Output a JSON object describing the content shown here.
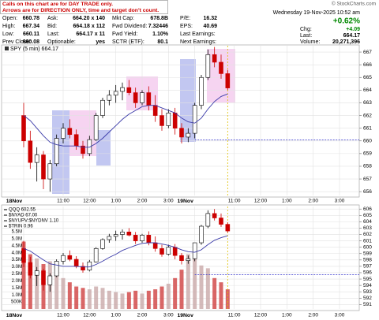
{
  "header": {
    "notice": [
      "Calls on this chart are for DAY TRADE only.",
      "Arrows are for DIRECTION ONLY, time and target don't count."
    ],
    "copyright": "© StockCharts.com",
    "datetime": "Wednesday 19-Nov-2025 10:52 am",
    "change_percent": "+0.62%",
    "quote": [
      {
        "label": "Open:",
        "value": 660.78
      },
      {
        "label": "High:",
        "value": 667.34
      },
      {
        "label": "Low:",
        "value": 660.11
      },
      {
        "label": "Prev Close:",
        "value": 660.08
      },
      {
        "label": "Ask:",
        "value": "664.20 x 140"
      },
      {
        "label": "Bid:",
        "value": "664.18 x 112"
      },
      {
        "label": "Last:",
        "value": "664.17 x 11"
      },
      {
        "label": "Optionable:",
        "value": "yes"
      },
      {
        "label": "Mkt Cap:",
        "value": "678.8B"
      },
      {
        "label": "Fwd Dividend:",
        "value": 7.32446
      },
      {
        "label": "Fwd Yield:",
        "value": "1.10%"
      },
      {
        "label": "SCTR (ETF):",
        "value": 80.1
      },
      {
        "label": "P/E:",
        "value": 16.32
      },
      {
        "label": "EPS:",
        "value": 40.69
      },
      {
        "label": "Last Earnings:"
      },
      {
        "label": "Next Earnings:"
      },
      {
        "label": "Chg:",
        "value": "+4.09"
      },
      {
        "label": "Last:",
        "value": 664.17
      },
      {
        "label": "Volume:",
        "value": "20,271,396"
      }
    ]
  },
  "chart_data": [
    {
      "type": "candlestick",
      "label": "SPY (5 min) 664.17",
      "x": [
        0,
        1,
        2,
        3,
        4,
        5,
        6,
        7,
        8,
        9,
        10,
        11,
        12,
        13,
        14,
        15,
        16,
        17,
        18,
        19,
        20,
        21,
        22,
        23,
        24,
        25,
        26,
        27,
        28,
        29,
        30,
        31
      ],
      "open": [
        662.0,
        660.0,
        658.3,
        658.9,
        657.0,
        658.2,
        660.2,
        661.0,
        660.5,
        659.6,
        659.0,
        660.1,
        662.0,
        663.2,
        663.6,
        663.9,
        664.2,
        663.8,
        663.0,
        663.8,
        662.8,
        662.0,
        661.2,
        662.2,
        661.0,
        660.3,
        660.6,
        662.8,
        665.0,
        666.8,
        666.2,
        665.3
      ],
      "high": [
        663.0,
        660.8,
        659.5,
        659.2,
        658.5,
        660.5,
        661.4,
        661.7,
        660.9,
        660.0,
        660.4,
        662.2,
        663.4,
        664.0,
        664.4,
        664.6,
        664.8,
        664.2,
        664.0,
        664.3,
        663.6,
        662.5,
        662.5,
        662.6,
        661.4,
        661.0,
        663.0,
        665.2,
        667.2,
        667.4,
        666.8,
        665.6
      ],
      "low": [
        659.5,
        657.8,
        656.8,
        656.2,
        656.0,
        658.0,
        659.8,
        660.2,
        659.3,
        658.6,
        658.8,
        660.0,
        661.8,
        662.8,
        663.0,
        663.2,
        663.6,
        662.6,
        662.8,
        662.4,
        661.5,
        660.8,
        661.0,
        660.5,
        659.8,
        659.9,
        660.2,
        662.5,
        664.8,
        665.8,
        664.9,
        664.0
      ],
      "close": [
        660.0,
        658.3,
        658.9,
        657.0,
        658.2,
        660.2,
        661.0,
        660.5,
        659.6,
        659.0,
        660.1,
        662.0,
        663.2,
        663.6,
        663.9,
        664.2,
        663.8,
        663.0,
        663.8,
        662.8,
        662.0,
        661.2,
        662.2,
        661.0,
        660.3,
        660.6,
        662.8,
        665.0,
        666.8,
        666.2,
        665.3,
        664.17
      ],
      "up_color": "#000000",
      "down_color": "#cc0000",
      "moving_average": {
        "color": "#3a3aa8",
        "values": [
          662.0,
          661.6,
          661.0,
          660.4,
          659.9,
          659.7,
          659.6,
          659.6,
          659.6,
          659.5,
          659.5,
          659.8,
          660.2,
          660.7,
          661.2,
          661.7,
          662.1,
          662.4,
          662.7,
          662.8,
          662.8,
          662.6,
          662.4,
          662.2,
          661.8,
          661.5,
          661.4,
          661.8,
          662.5,
          663.1,
          663.5,
          663.7
        ]
      },
      "xlim": [
        0,
        51
      ],
      "xticks": [
        {
          "value": 0,
          "label": "18Nov"
        },
        {
          "value": 6,
          "label": "11:00"
        },
        {
          "value": 10,
          "label": "12:00"
        },
        {
          "value": 14,
          "label": "1:00"
        },
        {
          "value": 18,
          "label": "2:00"
        },
        {
          "value": 22,
          "label": "3:00"
        },
        {
          "value": 26,
          "label": "19Nov"
        },
        {
          "value": 32,
          "label": "11:00"
        },
        {
          "value": 36,
          "label": "12:00"
        },
        {
          "value": 40,
          "label": "1:00"
        },
        {
          "value": 44,
          "label": "2:00"
        },
        {
          "value": 48,
          "label": "3:00"
        }
      ],
      "ylim": [
        655.7,
        667.5
      ],
      "yticks": [
        656,
        657,
        658,
        659,
        660,
        661,
        662,
        663,
        664,
        665,
        666,
        667
      ],
      "grid": true
    },
    {
      "type": "candlestick",
      "legend": [
        "QQQ 602.55",
        "$NYAD 67.00",
        "$NYUPV:$NYDNV 1.10",
        "$TRIN 0.96"
      ],
      "x": [
        0,
        1,
        2,
        3,
        4,
        5,
        6,
        7,
        8,
        9,
        10,
        11,
        12,
        13,
        14,
        15,
        16,
        17,
        18,
        19,
        20,
        21,
        22,
        23,
        24,
        25,
        26,
        27,
        28,
        29,
        30,
        31
      ],
      "open": [
        599.8,
        597.6,
        595.6,
        596.3,
        594.1,
        595.5,
        597.8,
        598.7,
        598.1,
        597.0,
        596.4,
        597.7,
        599.8,
        601.2,
        601.7,
        602.0,
        602.4,
        601.9,
        601.0,
        601.9,
        600.7,
        599.8,
        598.9,
        600.0,
        598.7,
        597.9,
        598.2,
        600.7,
        603.3,
        605.3,
        604.6,
        603.6
      ],
      "high": [
        601.0,
        598.5,
        596.9,
        596.6,
        595.9,
        598.1,
        599.1,
        599.5,
        598.6,
        597.6,
        598.0,
        600.0,
        601.4,
        602.1,
        602.6,
        602.8,
        603.0,
        602.4,
        602.1,
        602.5,
        601.7,
        600.4,
        600.4,
        600.5,
        599.1,
        598.7,
        600.7,
        603.5,
        605.8,
        606.0,
        605.3,
        603.9
      ],
      "low": [
        596.9,
        595.1,
        593.9,
        593.2,
        593.0,
        595.3,
        597.3,
        597.8,
        596.7,
        596.0,
        596.2,
        597.6,
        599.6,
        600.7,
        601.0,
        601.2,
        601.7,
        600.5,
        600.7,
        600.3,
        599.3,
        598.5,
        598.7,
        598.1,
        597.3,
        597.4,
        597.8,
        600.4,
        603.0,
        604.2,
        603.2,
        602.3
      ],
      "close": [
        597.6,
        595.6,
        596.3,
        594.1,
        595.5,
        597.8,
        598.7,
        598.1,
        597.0,
        596.4,
        597.7,
        599.8,
        601.2,
        601.7,
        602.0,
        602.4,
        601.9,
        601.0,
        601.9,
        600.7,
        599.8,
        598.9,
        600.0,
        598.7,
        597.9,
        598.2,
        600.7,
        603.3,
        605.3,
        604.6,
        603.6,
        602.55
      ],
      "up_color": "#000000",
      "down_color": "#cc0000",
      "moving_average": {
        "color": "#3a3aa8",
        "values": [
          599.8,
          599.4,
          598.7,
          598.0,
          597.4,
          597.2,
          597.0,
          597.0,
          597.0,
          596.9,
          596.9,
          597.3,
          597.8,
          598.4,
          598.9,
          599.5,
          599.9,
          600.3,
          600.6,
          600.7,
          600.7,
          600.5,
          600.3,
          600.0,
          599.6,
          599.3,
          599.2,
          599.6,
          600.4,
          601.1,
          601.5,
          601.8
        ]
      },
      "reference_line": 595.7,
      "volume": {
        "values": [
          4800000,
          3900000,
          3600000,
          3200000,
          3400000,
          2600000,
          2200000,
          1900000,
          1600000,
          1500000,
          1400000,
          1600000,
          1500000,
          1300000,
          1200000,
          1100000,
          1200000,
          1300000,
          1100000,
          1300000,
          1400000,
          1600000,
          1800000,
          2200000,
          2800000,
          3900000,
          3600000,
          3100000,
          2900000,
          2200000,
          1900000,
          1400000
        ],
        "up_color": "#c9a9a9",
        "down_color": "#d04040",
        "ylim": [
          0,
          7300000
        ],
        "yticks": [
          {
            "value": 500000,
            "label": "500K"
          },
          {
            "value": 1000000,
            "label": "1.0M"
          },
          {
            "value": 1500000,
            "label": "1.5M"
          },
          {
            "value": 2000000,
            "label": "2.0M"
          },
          {
            "value": 2500000,
            "label": "2.5M"
          },
          {
            "value": 3000000,
            "label": "3.0M"
          },
          {
            "value": 3500000,
            "label": "3.5M"
          },
          {
            "value": 4000000,
            "label": "4.0M"
          },
          {
            "value": 4500000,
            "label": "4.5M"
          },
          {
            "value": 5000000,
            "label": "5.0M"
          },
          {
            "value": 5500000,
            "label": "5.5M"
          }
        ]
      },
      "xlim": [
        0,
        51
      ],
      "xticks": [
        {
          "value": 0,
          "label": "18Nov"
        },
        {
          "value": 6,
          "label": "11:00"
        },
        {
          "value": 10,
          "label": "12:00"
        },
        {
          "value": 14,
          "label": "1:00"
        },
        {
          "value": 18,
          "label": "2:00"
        },
        {
          "value": 22,
          "label": "3:00"
        },
        {
          "value": 26,
          "label": "19Nov"
        },
        {
          "value": 32,
          "label": "11:00"
        },
        {
          "value": 36,
          "label": "12:00"
        },
        {
          "value": 40,
          "label": "1:00"
        },
        {
          "value": 44,
          "label": "2:00"
        },
        {
          "value": 48,
          "label": "3:00"
        }
      ],
      "ylim": [
        590.3,
        606.4
      ],
      "yticks": [
        591,
        592,
        593,
        594,
        595,
        596,
        597,
        598,
        599,
        600,
        601,
        602,
        603,
        604,
        605,
        606
      ],
      "grid": true
    }
  ]
}
